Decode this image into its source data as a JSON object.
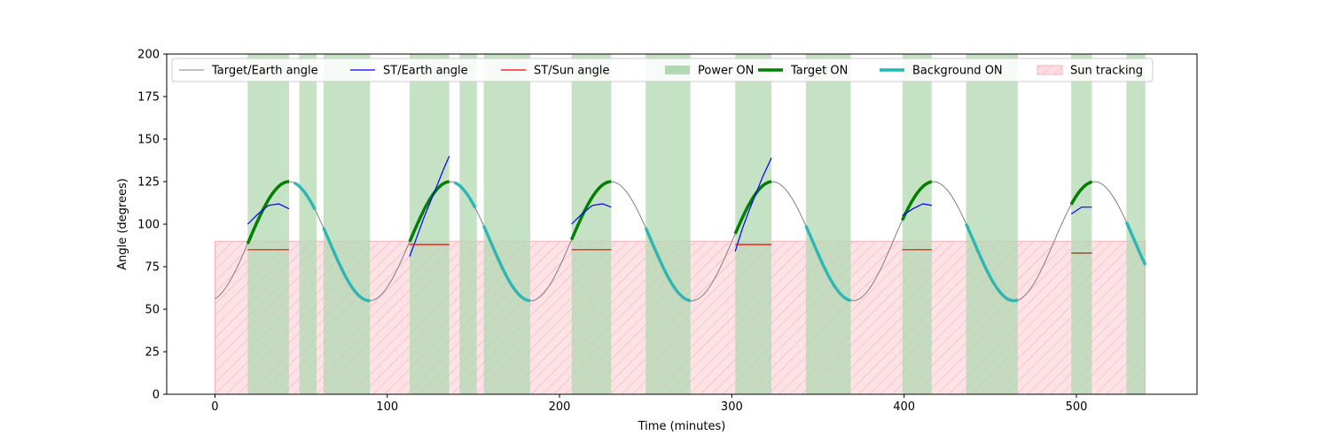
{
  "chart_data": {
    "type": "line",
    "title": "",
    "xlabel": "Time (minutes)",
    "ylabel": "Angle (degrees)",
    "xlim": [
      -28,
      570
    ],
    "ylim": [
      0,
      200
    ],
    "xticks": [
      0,
      100,
      200,
      300,
      400,
      500
    ],
    "yticks": [
      0,
      25,
      50,
      75,
      100,
      125,
      150,
      175,
      200
    ],
    "grid": false,
    "legend_position": "top",
    "legend": [
      {
        "key": "target_earth",
        "label": "Target/Earth angle",
        "kind": "line",
        "color": "#808080",
        "width": 1
      },
      {
        "key": "st_earth",
        "label": "ST/Earth angle",
        "kind": "line",
        "color": "#0000ff",
        "width": 1.2
      },
      {
        "key": "st_sun",
        "label": "ST/Sun angle",
        "kind": "line",
        "color": "#ff0000",
        "width": 1.2
      },
      {
        "key": "power_on",
        "label": "Power ON",
        "kind": "patch",
        "color": "#b2d8b2"
      },
      {
        "key": "target_on",
        "label": "Target ON",
        "kind": "line",
        "color": "#008000",
        "width": 3.5
      },
      {
        "key": "background_on",
        "label": "Background ON",
        "kind": "line",
        "color": "#22b5b5",
        "width": 3.5
      },
      {
        "key": "sun_tracking",
        "label": "Sun tracking",
        "kind": "hatch",
        "color": "#ffdde2"
      }
    ],
    "target_earth_model": {
      "period": 93.5,
      "mean": 90,
      "amplitude": 35,
      "peak_time": 43,
      "t_start": 0,
      "t_end": 540
    },
    "sun_tracking": {
      "range": [
        0,
        540
      ],
      "y_max": 90
    },
    "power_on_intervals": [
      [
        19,
        43
      ],
      [
        49,
        59
      ],
      [
        63,
        90
      ],
      [
        113,
        136
      ],
      [
        142,
        152
      ],
      [
        156,
        183
      ],
      [
        207,
        230
      ],
      [
        250,
        276
      ],
      [
        302,
        323
      ],
      [
        343,
        369
      ],
      [
        399,
        416
      ],
      [
        436,
        466
      ],
      [
        497,
        509
      ],
      [
        529,
        540
      ]
    ],
    "target_on_intervals": [
      [
        19,
        43
      ],
      [
        113,
        136
      ],
      [
        207,
        230
      ],
      [
        302,
        323
      ],
      [
        399,
        416
      ],
      [
        497,
        509
      ]
    ],
    "background_on_intervals": [
      [
        46,
        58
      ],
      [
        63,
        90
      ],
      [
        139,
        151
      ],
      [
        156,
        183
      ],
      [
        250,
        276
      ],
      [
        343,
        369
      ],
      [
        436,
        466
      ],
      [
        529,
        540
      ]
    ],
    "st_earth_segments": [
      {
        "x": [
          19,
          25,
          31,
          37,
          43
        ],
        "y": [
          100,
          106,
          111,
          112,
          109
        ]
      },
      {
        "x": [
          113,
          117,
          121,
          125,
          129,
          133,
          136
        ],
        "y": [
          81,
          92,
          103,
          113,
          123,
          133,
          140
        ]
      },
      {
        "x": [
          207,
          213,
          219,
          225,
          230
        ],
        "y": [
          100,
          106,
          111,
          112,
          110
        ]
      },
      {
        "x": [
          302,
          306,
          310,
          314,
          318,
          323
        ],
        "y": [
          84,
          97,
          108,
          118,
          128,
          139
        ]
      },
      {
        "x": [
          399,
          405,
          411,
          416
        ],
        "y": [
          105,
          109,
          112,
          111
        ]
      },
      {
        "x": [
          497,
          503,
          509
        ],
        "y": [
          106,
          110,
          110
        ]
      }
    ],
    "st_sun_segments": [
      {
        "x": [
          19,
          43
        ],
        "y": [
          85,
          85
        ]
      },
      {
        "x": [
          113,
          136
        ],
        "y": [
          88,
          88
        ]
      },
      {
        "x": [
          207,
          230
        ],
        "y": [
          85,
          85
        ]
      },
      {
        "x": [
          302,
          323
        ],
        "y": [
          88,
          88
        ]
      },
      {
        "x": [
          399,
          416
        ],
        "y": [
          85,
          85
        ]
      },
      {
        "x": [
          497,
          509
        ],
        "y": [
          83,
          83
        ]
      }
    ]
  }
}
